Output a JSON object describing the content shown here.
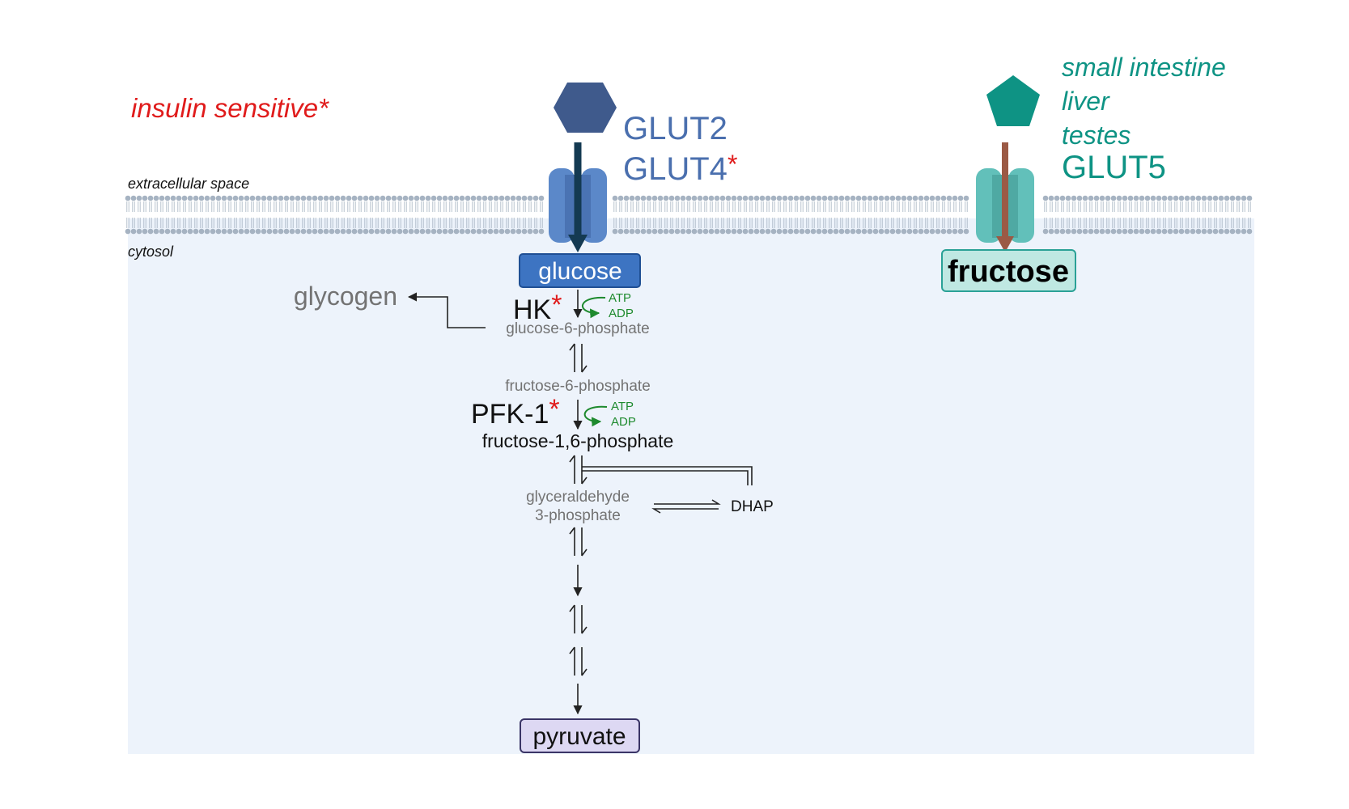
{
  "regions": {
    "extracellular_label": "extracellular space",
    "cytosol_label": "cytosol"
  },
  "legend": {
    "insulin_text": "insulin sensitive",
    "asterisk": "*"
  },
  "transporters": {
    "glut2": "GLUT2",
    "glut4": "GLUT4",
    "glut4_star": "*",
    "glut5": "GLUT5",
    "glut5_tissues": [
      "small intestine",
      "liver",
      "testes"
    ]
  },
  "metabolites": {
    "glucose": "glucose",
    "fructose": "fructose",
    "glycogen": "glycogen",
    "g6p": "glucose-6-phosphate",
    "f6p": "fructose-6-phosphate",
    "f16bp": "fructose-1,6-phosphate",
    "gap_line1": "glyceraldehyde",
    "gap_line2": "3-phosphate",
    "dhap": "DHAP",
    "pyruvate": "pyruvate"
  },
  "enzymes": {
    "hk": "HK",
    "hk_star": "*",
    "pfk": "PFK-1",
    "pfk_star": "*"
  },
  "cofactors": {
    "atp": "ATP",
    "adp": "ADP"
  },
  "colors": {
    "cytosol_bg": "#edf3fb",
    "membrane": "#a6b3c2",
    "glut_blue": "#4a6fae",
    "glucose_hex": "#3f5a8c",
    "glucose_box": "#3d74c2",
    "fructose_teal": "#0e9384",
    "fructose_box": "#bfe8e2",
    "channel_teal": "#62c0ba",
    "channel_blue": "#5b88c9",
    "arrow_brown": "#9b5a45",
    "arrow_navy": "#143a52",
    "star_red": "#e01b1b",
    "cofactor_green": "#1e8a2e",
    "pyruvate_box": "#ddd8f3",
    "grey_text": "#737373"
  }
}
